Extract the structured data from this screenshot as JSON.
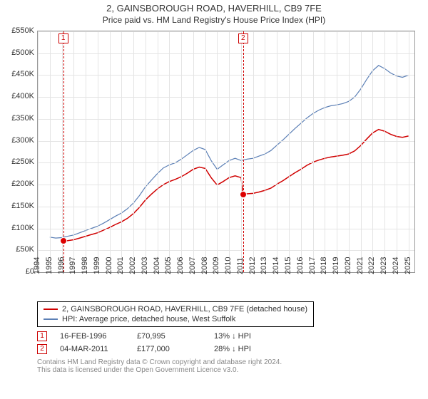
{
  "title": {
    "line1": "2, GAINSBOROUGH ROAD, HAVERHILL, CB9 7FE",
    "line2": "Price paid vs. HM Land Registry's House Price Index (HPI)"
  },
  "chart": {
    "type": "line",
    "background_color": "#ffffff",
    "grid_color": "#e4e4e4",
    "border_color": "#999999",
    "x": {
      "min": 1994,
      "max": 2025.5,
      "ticks": [
        1994,
        1995,
        1996,
        1997,
        1998,
        1999,
        2000,
        2001,
        2002,
        2003,
        2004,
        2005,
        2006,
        2007,
        2008,
        2009,
        2010,
        2011,
        2012,
        2013,
        2014,
        2015,
        2016,
        2017,
        2018,
        2019,
        2020,
        2021,
        2022,
        2023,
        2024,
        2025
      ],
      "tick_fontsize": 11,
      "label_rotation": -90
    },
    "y": {
      "min": 0,
      "max": 550000,
      "ticks": [
        0,
        50000,
        100000,
        150000,
        200000,
        250000,
        300000,
        350000,
        400000,
        450000,
        500000,
        550000
      ],
      "tick_labels": [
        "£0",
        "£50K",
        "£100K",
        "£150K",
        "£200K",
        "£250K",
        "£300K",
        "£350K",
        "£400K",
        "£450K",
        "£500K",
        "£550K"
      ],
      "tick_fontsize": 11
    },
    "series": [
      {
        "id": "hpi",
        "label": "HPI: Average price, detached house, West Suffolk",
        "color": "#5b7fb5",
        "line_width": 1.2,
        "points": [
          [
            1995.0,
            80000
          ],
          [
            1995.5,
            78000
          ],
          [
            1996.0,
            79000
          ],
          [
            1996.5,
            82000
          ],
          [
            1997.0,
            85000
          ],
          [
            1997.5,
            90000
          ],
          [
            1998.0,
            95000
          ],
          [
            1998.5,
            100000
          ],
          [
            1999.0,
            105000
          ],
          [
            1999.5,
            112000
          ],
          [
            2000.0,
            120000
          ],
          [
            2000.5,
            128000
          ],
          [
            2001.0,
            135000
          ],
          [
            2001.5,
            145000
          ],
          [
            2002.0,
            158000
          ],
          [
            2002.5,
            175000
          ],
          [
            2003.0,
            195000
          ],
          [
            2003.5,
            210000
          ],
          [
            2004.0,
            225000
          ],
          [
            2004.5,
            238000
          ],
          [
            2005.0,
            245000
          ],
          [
            2005.5,
            250000
          ],
          [
            2006.0,
            258000
          ],
          [
            2006.5,
            268000
          ],
          [
            2007.0,
            278000
          ],
          [
            2007.5,
            285000
          ],
          [
            2008.0,
            280000
          ],
          [
            2008.5,
            255000
          ],
          [
            2009.0,
            235000
          ],
          [
            2009.5,
            245000
          ],
          [
            2010.0,
            255000
          ],
          [
            2010.5,
            260000
          ],
          [
            2011.0,
            255000
          ],
          [
            2011.5,
            258000
          ],
          [
            2012.0,
            260000
          ],
          [
            2012.5,
            265000
          ],
          [
            2013.0,
            270000
          ],
          [
            2013.5,
            278000
          ],
          [
            2014.0,
            290000
          ],
          [
            2014.5,
            302000
          ],
          [
            2015.0,
            315000
          ],
          [
            2015.5,
            328000
          ],
          [
            2016.0,
            340000
          ],
          [
            2016.5,
            352000
          ],
          [
            2017.0,
            362000
          ],
          [
            2017.5,
            370000
          ],
          [
            2018.0,
            376000
          ],
          [
            2018.5,
            380000
          ],
          [
            2019.0,
            382000
          ],
          [
            2019.5,
            385000
          ],
          [
            2020.0,
            390000
          ],
          [
            2020.5,
            400000
          ],
          [
            2021.0,
            418000
          ],
          [
            2021.5,
            440000
          ],
          [
            2022.0,
            460000
          ],
          [
            2022.5,
            472000
          ],
          [
            2023.0,
            465000
          ],
          [
            2023.5,
            455000
          ],
          [
            2024.0,
            448000
          ],
          [
            2024.5,
            445000
          ],
          [
            2025.0,
            450000
          ]
        ]
      },
      {
        "id": "price_paid",
        "label": "2, GAINSBOROUGH ROAD, HAVERHILL, CB9 7FE (detached house)",
        "color": "#d00000",
        "line_width": 1.5,
        "points": [
          [
            1996.13,
            70995
          ],
          [
            1996.5,
            72000
          ],
          [
            1997.0,
            74000
          ],
          [
            1997.5,
            78000
          ],
          [
            1998.0,
            82000
          ],
          [
            1998.5,
            86000
          ],
          [
            1999.0,
            90000
          ],
          [
            1999.5,
            96000
          ],
          [
            2000.0,
            102000
          ],
          [
            2000.5,
            109000
          ],
          [
            2001.0,
            115000
          ],
          [
            2001.5,
            123000
          ],
          [
            2002.0,
            134000
          ],
          [
            2002.5,
            148000
          ],
          [
            2003.0,
            165000
          ],
          [
            2003.5,
            178000
          ],
          [
            2004.0,
            190000
          ],
          [
            2004.5,
            200000
          ],
          [
            2005.0,
            207000
          ],
          [
            2005.5,
            212000
          ],
          [
            2006.0,
            218000
          ],
          [
            2006.5,
            226000
          ],
          [
            2007.0,
            235000
          ],
          [
            2007.5,
            240000
          ],
          [
            2008.0,
            237000
          ],
          [
            2008.5,
            216000
          ],
          [
            2009.0,
            199000
          ],
          [
            2009.5,
            207000
          ],
          [
            2010.0,
            216000
          ],
          [
            2010.5,
            220000
          ],
          [
            2011.0,
            216000
          ],
          [
            2011.17,
            177000
          ],
          [
            2011.5,
            179000
          ],
          [
            2012.0,
            180000
          ],
          [
            2012.5,
            183000
          ],
          [
            2013.0,
            187000
          ],
          [
            2013.5,
            192000
          ],
          [
            2014.0,
            201000
          ],
          [
            2014.5,
            209000
          ],
          [
            2015.0,
            218000
          ],
          [
            2015.5,
            227000
          ],
          [
            2016.0,
            235000
          ],
          [
            2016.5,
            244000
          ],
          [
            2017.0,
            251000
          ],
          [
            2017.5,
            256000
          ],
          [
            2018.0,
            260000
          ],
          [
            2018.5,
            263000
          ],
          [
            2019.0,
            265000
          ],
          [
            2019.5,
            267000
          ],
          [
            2020.0,
            270000
          ],
          [
            2020.5,
            277000
          ],
          [
            2021.0,
            289000
          ],
          [
            2021.5,
            304000
          ],
          [
            2022.0,
            318000
          ],
          [
            2022.5,
            326000
          ],
          [
            2023.0,
            322000
          ],
          [
            2023.5,
            315000
          ],
          [
            2024.0,
            310000
          ],
          [
            2024.5,
            308000
          ],
          [
            2025.0,
            311000
          ]
        ]
      }
    ],
    "event_markers": [
      {
        "n": "1",
        "x": 1996.13,
        "y": 70995,
        "dash_color": "#d00000"
      },
      {
        "n": "2",
        "x": 2011.17,
        "y": 177000,
        "dash_color": "#d00000"
      }
    ]
  },
  "legend": {
    "items": [
      {
        "color": "#d00000",
        "text": "2, GAINSBOROUGH ROAD, HAVERHILL, CB9 7FE (detached house)"
      },
      {
        "color": "#5b7fb5",
        "text": "HPI: Average price, detached house, West Suffolk"
      }
    ]
  },
  "notes": {
    "rows": [
      {
        "n": "1",
        "date": "16-FEB-1996",
        "price": "£70,995",
        "delta": "13% ↓ HPI"
      },
      {
        "n": "2",
        "date": "04-MAR-2011",
        "price": "£177,000",
        "delta": "28% ↓ HPI"
      }
    ]
  },
  "footer": {
    "line1": "Contains HM Land Registry data © Crown copyright and database right 2024.",
    "line2": "This data is licensed under the Open Government Licence v3.0."
  }
}
